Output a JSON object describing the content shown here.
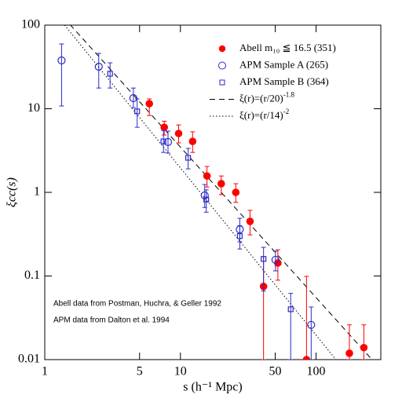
{
  "chart_data": {
    "type": "scatter",
    "x_label": "s (h⁻¹ Mpc)",
    "y_label": "ξcc(s)",
    "log_x": true,
    "log_y": true,
    "xlim": [
      1,
      300
    ],
    "ylim": [
      0.01,
      100
    ],
    "xticks": [
      1,
      5,
      10,
      50,
      100
    ],
    "yticks": [
      0.01,
      0.1,
      1,
      10,
      100
    ],
    "series": [
      {
        "name": "Abell m₁₀ ≦ 16.5 (351)",
        "color": "#ff0000",
        "marker": "filled-circle",
        "x": [
          5.9,
          7.6,
          9.7,
          12.3,
          15.7,
          20.0,
          25.6,
          32.6,
          41,
          52.3,
          85,
          176,
          225
        ],
        "values": [
          11.5,
          6.0,
          5.06,
          4.07,
          1.57,
          1.27,
          1.0,
          0.45,
          0.075,
          0.143,
          0.01,
          0.0119,
          0.0139
        ],
        "err_low": [
          8.3,
          4.85,
          3.9,
          3.0,
          1.16,
          0.94,
          0.76,
          0.31,
          0.01,
          0.089,
          0.01,
          0.01,
          0.01
        ],
        "err_high": [
          13.1,
          7.1,
          6.4,
          5.3,
          2.04,
          1.57,
          1.27,
          0.61,
          0.17,
          0.206,
          0.099,
          0.026,
          0.026
        ]
      },
      {
        "name": "APM Sample A (265)",
        "color": "#2a2acc",
        "marker": "open-circle",
        "x": [
          1.33,
          2.5,
          4.5,
          8.1,
          15.1,
          27.4,
          50.2,
          92
        ],
        "values": [
          37.8,
          31.8,
          13.4,
          4.0,
          0.92,
          0.36,
          0.156,
          0.026
        ],
        "err_low": [
          10.8,
          17.7,
          10.3,
          2.95,
          0.66,
          0.256,
          0.115,
          0.01
        ],
        "err_high": [
          59.5,
          45.9,
          17.7,
          5.4,
          1.24,
          0.49,
          0.198,
          0.0426
        ]
      },
      {
        "name": "APM Sample B (364)",
        "color": "#2a2acc",
        "marker": "open-square",
        "x": [
          3.03,
          4.8,
          7.5,
          11.4,
          15.5,
          27.4,
          41,
          65
        ],
        "values": [
          26.2,
          9.3,
          4.07,
          2.59,
          0.82,
          0.3,
          0.16,
          0.04
        ],
        "err_low": [
          17.7,
          6.0,
          3.0,
          1.91,
          0.58,
          0.21,
          0.066,
          0.01
        ],
        "err_high": [
          35.4,
          13.1,
          5.5,
          3.36,
          1.07,
          0.4,
          0.22,
          0.062
        ]
      }
    ],
    "fits": [
      {
        "name": "ξ(r)=(r/20)",
        "exponent": -1.8,
        "r0": 20,
        "dash": "dashed"
      },
      {
        "name": "ξ(r)=(r/14)",
        "exponent": -2.0,
        "r0": 14,
        "dash": "dotted"
      }
    ],
    "annotations": [
      "Abell data from Postman, Huchra, & Geller 1992",
      "APM data from Dalton et al. 1994"
    ]
  }
}
